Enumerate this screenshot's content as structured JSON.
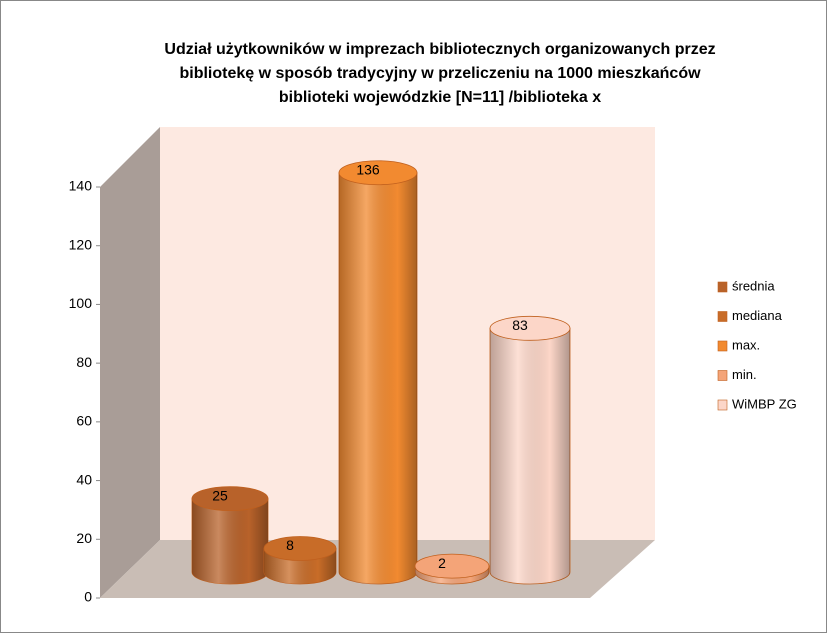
{
  "chart_data": {
    "type": "cylinder3d",
    "title": [
      "Udział użytkowników w imprezach bibliotecznych organizowanych przez",
      "bibliotekę w sposób tradycyjny w przeliczeniu na 1000 mieszkańców",
      "biblioteki wojewódzkie  [N=11] /biblioteka x"
    ],
    "series": [
      {
        "name": "średnia",
        "color": "#b8622a",
        "values": [
          25
        ]
      },
      {
        "name": "mediana",
        "color": "#c86c28",
        "values": [
          8
        ]
      },
      {
        "name": "max.",
        "color": "#f28a30",
        "values": [
          136
        ]
      },
      {
        "name": "min.",
        "color": "#f4a478",
        "values": [
          2
        ]
      },
      {
        "name": "WiMBP ZG",
        "color": "#fcd6c8",
        "values": [
          83
        ]
      }
    ],
    "ylim": [
      0,
      140
    ],
    "yticks": [
      0,
      20,
      40,
      60,
      80,
      100,
      120,
      140
    ],
    "legend": "right"
  }
}
